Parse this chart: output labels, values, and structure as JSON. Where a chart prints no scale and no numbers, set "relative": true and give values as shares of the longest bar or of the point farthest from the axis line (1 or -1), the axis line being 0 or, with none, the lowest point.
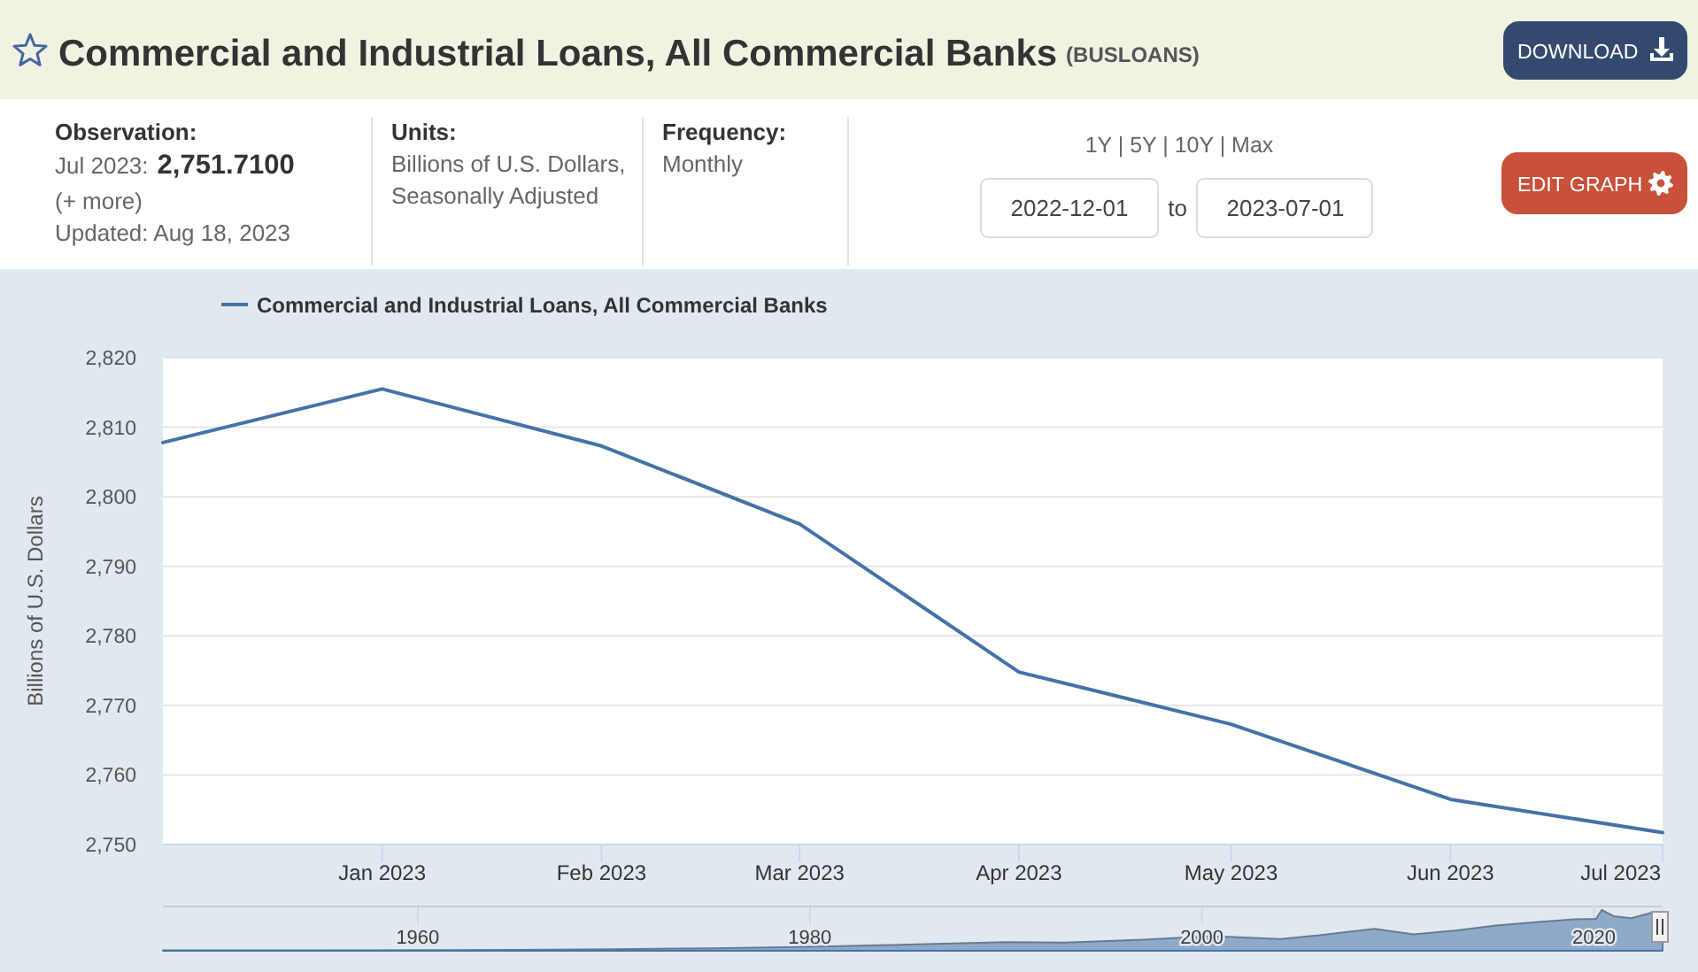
{
  "chart_data": [
    {
      "type": "line",
      "title": "Commercial and Industrial Loans, All Commercial Banks",
      "subtitle": "(BUSLOANS)",
      "ylabel": "Billions of U.S. Dollars",
      "x": [
        "2022-12",
        "2023-01",
        "2023-02",
        "2023-03",
        "2023-04",
        "2023-05",
        "2023-06",
        "2023-07"
      ],
      "series": [
        {
          "name": "Commercial and Industrial Loans, All Commercial Banks",
          "color": "#4572a7",
          "values": [
            2807.8,
            2815.5,
            2807.3,
            2796.1,
            2774.8,
            2767.3,
            2756.5,
            2751.71
          ]
        }
      ],
      "xlim": [
        "2022-12",
        "2023-07"
      ],
      "xticks": [
        {
          "value": "2023-01",
          "label": "Jan 2023"
        },
        {
          "value": "2023-02",
          "label": "Feb 2023"
        },
        {
          "value": "2023-03",
          "label": "Mar 2023"
        },
        {
          "value": "2023-04",
          "label": "Apr 2023"
        },
        {
          "value": "2023-05",
          "label": "May 2023"
        },
        {
          "value": "2023-06",
          "label": "Jun 2023"
        },
        {
          "value": "2023-07",
          "label": "Jul 2023"
        }
      ],
      "ylim": [
        2750,
        2820
      ],
      "yticks": [
        {
          "value": 2750,
          "label": "2,750"
        },
        {
          "value": 2760,
          "label": "2,760"
        },
        {
          "value": 2770,
          "label": "2,770"
        },
        {
          "value": 2780,
          "label": "2,780"
        },
        {
          "value": 2790,
          "label": "2,790"
        },
        {
          "value": 2800,
          "label": "2,800"
        },
        {
          "value": 2810,
          "label": "2,810"
        },
        {
          "value": 2820,
          "label": "2,820"
        }
      ],
      "grid": "y",
      "legend": "top left",
      "annotations": [
        "Observation:",
        "Jul 2023:",
        "2,751.7100",
        "(+ more)",
        "Updated: Aug 18, 2023",
        "Units:",
        "Billions of U.S. Dollars, Seasonally Adjusted",
        "Frequency:",
        "Monthly",
        "1Y | 5Y | 10Y | Max",
        "2022-12-01",
        "to",
        "2023-07-01",
        "DOWNLOAD",
        "EDIT GRAPH"
      ]
    },
    {
      "type": "area",
      "relative": true,
      "x": [
        1947,
        1955,
        1965,
        1970,
        1975,
        1980,
        1985,
        1990,
        1993,
        1997,
        2000.5,
        2004,
        2006,
        2008.8,
        2010.8,
        2013,
        2015,
        2017,
        2019,
        2020.1,
        2020.4,
        2021,
        2021.9,
        2022.9,
        2023.5
      ],
      "values": [
        0.01,
        0.01,
        0.02,
        0.04,
        0.06,
        0.1,
        0.15,
        0.21,
        0.2,
        0.27,
        0.36,
        0.29,
        0.38,
        0.54,
        0.4,
        0.5,
        0.62,
        0.7,
        0.77,
        0.78,
        1,
        0.85,
        0.8,
        0.93,
        0.91
      ],
      "color": "#8fa9c9",
      "xlim": [
        1947,
        2023.5
      ],
      "xticks": [
        1960,
        1980,
        2000,
        2020
      ],
      "tick_labels": "x",
      "grid": "x"
    }
  ]
}
